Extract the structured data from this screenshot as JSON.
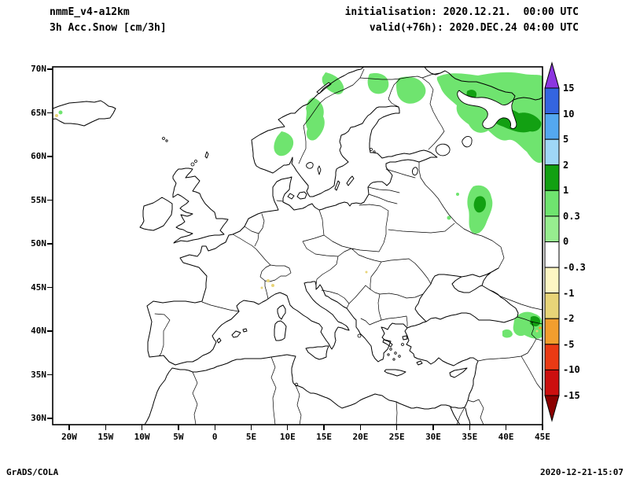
{
  "header": {
    "model": "nmmE_v4-a12km",
    "field": "3h Acc.Snow [cm/3h]",
    "init_line": "initialisation: 2020.12.21.  00:00 UTC",
    "valid_line": "valid(+76h): 2020.DEC.24 04:00 UTC"
  },
  "footer": {
    "left": "GrADS/COLA",
    "right": "2020-12-21-15:07"
  },
  "axes": {
    "lat_labels": [
      "70N",
      "65N",
      "60N",
      "55N",
      "50N",
      "45N",
      "40N",
      "35N",
      "30N"
    ],
    "lon_labels": [
      "20W",
      "15W",
      "10W",
      "5W",
      "0",
      "5E",
      "10E",
      "15E",
      "20E",
      "25E",
      "30E",
      "35E",
      "40E",
      "45E"
    ]
  },
  "chart_data": {
    "type": "shaded-contour-map",
    "title": "3h Acc.Snow [cm/3h]",
    "model": "nmmE_v4-a12km",
    "initialisation": "2020.12.21. 00:00 UTC",
    "valid": "2020.DEC.24 04:00 UTC",
    "forecast_hour": "+76h",
    "units": "cm/3h",
    "projection": "lat-lon cylindrical",
    "lon_range_deg": [
      -22.3,
      45.0
    ],
    "lat_range_deg": [
      29.3,
      70.3
    ],
    "lon_ticks": [
      "20W",
      "15W",
      "10W",
      "5W",
      "0",
      "5E",
      "10E",
      "15E",
      "20E",
      "25E",
      "30E",
      "35E",
      "40E",
      "45E"
    ],
    "lat_ticks": [
      "70N",
      "65N",
      "60N",
      "55N",
      "50N",
      "45N",
      "40N",
      "35N",
      "30N"
    ],
    "grid": false,
    "legend_position": "right vertical colorbar with end arrows",
    "colorbar": {
      "levels": [
        15,
        10,
        5,
        2,
        1,
        0.3,
        0,
        -0.3,
        -1,
        -2,
        -5,
        -10,
        -15
      ],
      "level_labels": [
        "15",
        "10",
        "5",
        "2",
        "1",
        "0.3",
        "0",
        "-0.3",
        "-1",
        "-2",
        "-5",
        "-10",
        "-15"
      ],
      "colors_top_to_bottom": [
        "#8c36e0",
        "#3465e0",
        "#54a8f0",
        "#9fd7f7",
        "#12a012",
        "#6fe46f",
        "#97ee8f",
        "#ffffff",
        "#fdf6c3",
        "#e8d478",
        "#f29e2e",
        "#ea3a14",
        "#cc0f0f",
        "#8b0000"
      ],
      "units": "cm/3h"
    },
    "shaded_regions": [
      {
        "area": "Scandinavian mountain chain (Norway/Sweden)",
        "value_range_cm": "0.3-1"
      },
      {
        "area": "Northern Sweden and Finland",
        "value_range_cm": "0.3-1"
      },
      {
        "area": "Kola peninsula / Arkhangelsk / NW Russia (large area)",
        "value_range_cm": "0.3-1, cores 1-2"
      },
      {
        "area": "Central European Russia near 35-40E, 50-57N",
        "value_range_cm": "0.3-1, core 1-2"
      },
      {
        "area": "Caucasus and NE Turkey near map edge",
        "value_range_cm": "0.3-2, tiny negative specks"
      },
      {
        "area": "Alps (tiny specks)",
        "value_range_cm": "-1 to -0.3"
      },
      {
        "area": "Eastern Iceland (tiny speck)",
        "value_range_cm": "0.3-1"
      }
    ],
    "attribution": "GrADS/COLA",
    "timestamp": "2020-12-21-15:07"
  }
}
